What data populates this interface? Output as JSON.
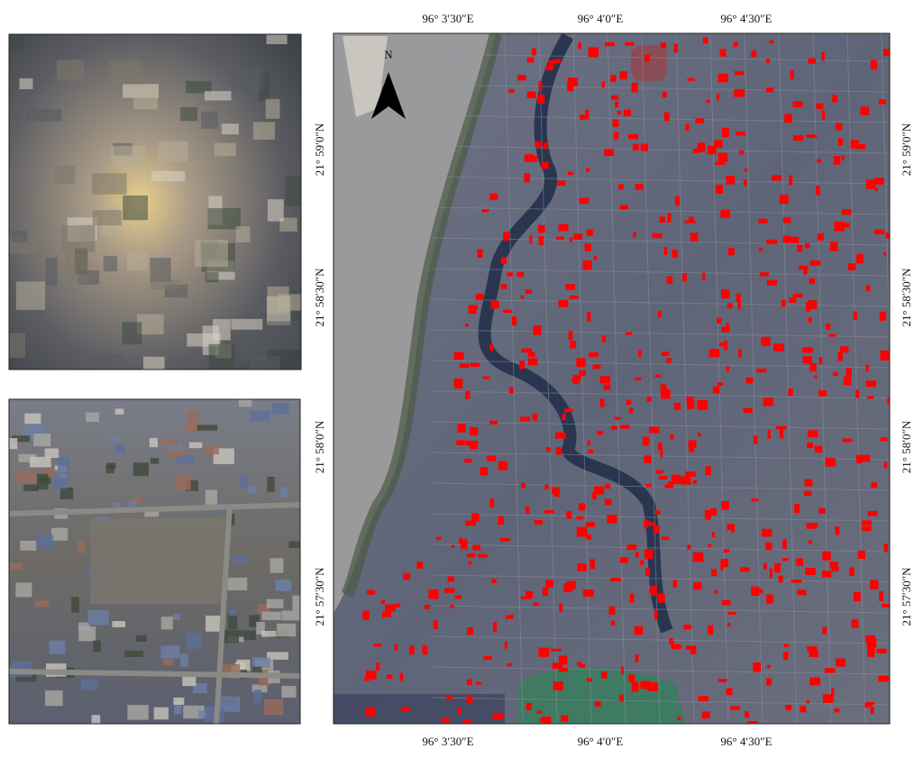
{
  "map": {
    "north_label": "N",
    "longitude_labels": [
      "96° 3′30″E",
      "96° 4′0″E",
      "96° 4′30″E"
    ],
    "latitude_labels": [
      "21° 59′0″N",
      "21° 58′30″N",
      "21° 58′0″N",
      "21° 57′30″N"
    ]
  }
}
